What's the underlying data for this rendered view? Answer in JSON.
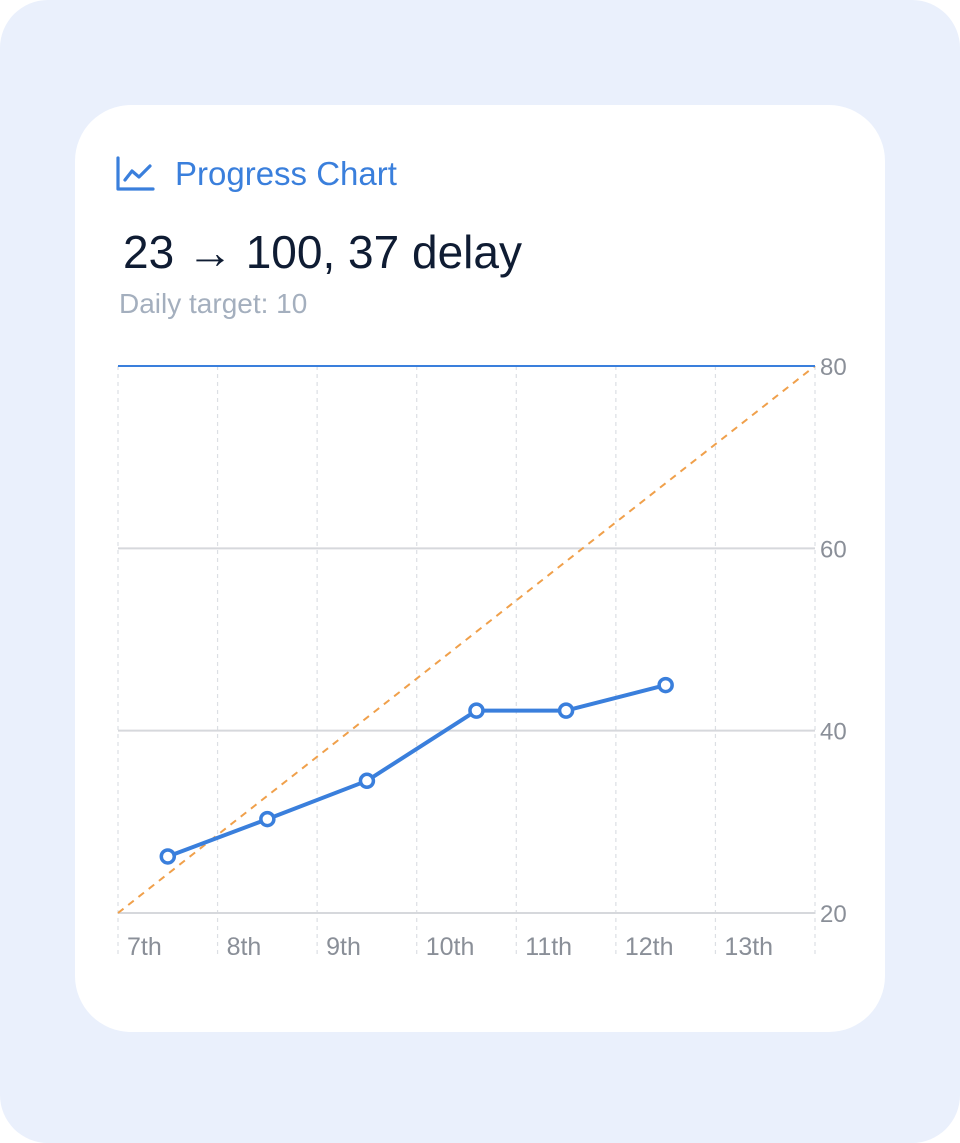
{
  "header": {
    "icon": "line-chart-icon",
    "title": "Progress Chart",
    "accent_color": "#3a7fdc"
  },
  "summary": {
    "headline": "23 → 100, 37 delay",
    "subline": "Daily target: 10"
  },
  "chart_data": {
    "type": "line",
    "x_categories": [
      "7th",
      "8th",
      "9th",
      "10th",
      "11th",
      "12th",
      "13th"
    ],
    "y_axis": {
      "ticks": [
        20,
        40,
        60,
        80
      ],
      "ylim": [
        20,
        80
      ],
      "position": "right"
    },
    "grid": true,
    "series": [
      {
        "kind": "actual",
        "color": "#3a7fdc",
        "points": [
          {
            "x": 0.5,
            "y": 26.2
          },
          {
            "x": 1.5,
            "y": 30.3
          },
          {
            "x": 2.5,
            "y": 34.5
          },
          {
            "x": 3.6,
            "y": 42.2
          },
          {
            "x": 4.5,
            "y": 42.2
          },
          {
            "x": 5.5,
            "y": 45.0
          }
        ]
      },
      {
        "kind": "target",
        "color": "#f0a04b",
        "style": "dashed",
        "points": [
          {
            "x": 0.0,
            "y": 20
          },
          {
            "x": 7.0,
            "y": 80
          }
        ]
      },
      {
        "kind": "goal",
        "color": "#3a7fdc",
        "points": [
          {
            "x": 0.0,
            "y": 80
          },
          {
            "x": 7.0,
            "y": 80
          }
        ]
      }
    ]
  }
}
